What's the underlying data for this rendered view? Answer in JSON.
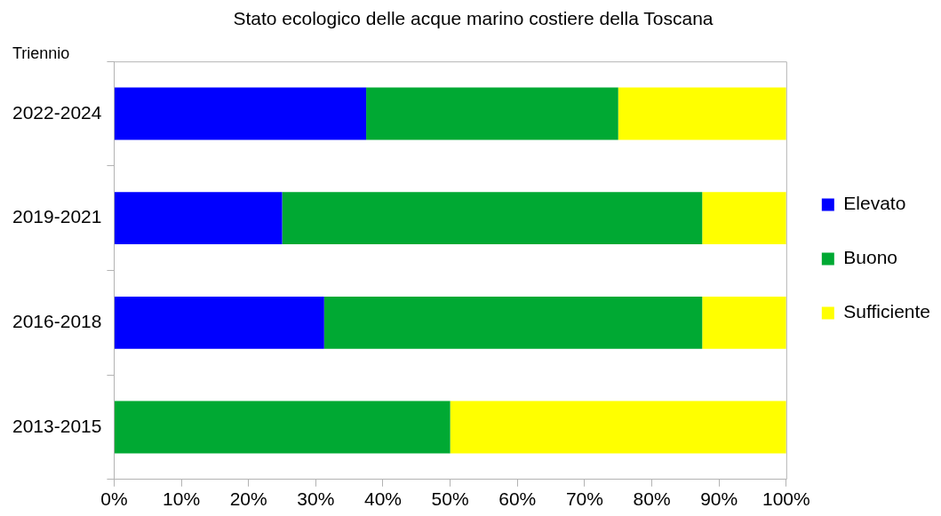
{
  "chart_data": {
    "type": "bar",
    "orientation": "horizontal",
    "stacked": true,
    "title": "Stato ecologico delle acque marino costiere della Toscana",
    "ylabel": "Triennio",
    "categories": [
      "2022-2024",
      "2019-2021",
      "2016-2018",
      "2013-2015"
    ],
    "series": [
      {
        "name": "Elevato",
        "color": "#0000ff",
        "values": [
          37.5,
          25,
          31.25,
          0
        ]
      },
      {
        "name": "Buono",
        "color": "#00a933",
        "values": [
          37.5,
          62.5,
          56.25,
          50
        ]
      },
      {
        "name": "Sufficiente",
        "color": "#ffff00",
        "values": [
          25,
          12.5,
          12.5,
          50
        ]
      }
    ],
    "xlim": [
      0,
      100
    ],
    "xticks": [
      {
        "value": 0,
        "label": "0%"
      },
      {
        "value": 10,
        "label": "10%"
      },
      {
        "value": 20,
        "label": "20%"
      },
      {
        "value": 30,
        "label": "30%"
      },
      {
        "value": 40,
        "label": "40%"
      },
      {
        "value": 50,
        "label": "50%"
      },
      {
        "value": 60,
        "label": "60%"
      },
      {
        "value": 70,
        "label": "70%"
      },
      {
        "value": 80,
        "label": "80%"
      },
      {
        "value": 90,
        "label": "90%"
      },
      {
        "value": 100,
        "label": "100%"
      }
    ],
    "grid": false,
    "legend": "right"
  }
}
